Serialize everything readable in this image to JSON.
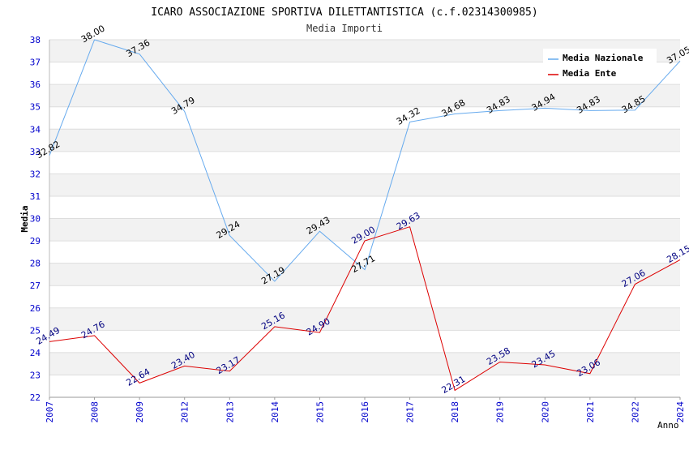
{
  "header": {
    "title": "ICARO ASSOCIAZIONE SPORTIVA DILETTANTISTICA (c.f.02314300985)",
    "subtitle": "Media Importi"
  },
  "chart_data": {
    "type": "line",
    "title": "ICARO ASSOCIAZIONE SPORTIVA DILETTANTISTICA (c.f.02314300985)",
    "subtitle": "Media Importi",
    "xlabel": "Anno",
    "ylabel": "Media",
    "ylim": [
      22,
      38
    ],
    "yticks": [
      22,
      23,
      24,
      25,
      26,
      27,
      28,
      29,
      30,
      31,
      32,
      33,
      34,
      35,
      36,
      37,
      38
    ],
    "categories": [
      "2007",
      "2008",
      "2009",
      "2012",
      "2013",
      "2014",
      "2015",
      "2016",
      "2017",
      "2018",
      "2019",
      "2020",
      "2021",
      "2022",
      "2024"
    ],
    "grid": true,
    "legend_position": "top-right",
    "series": [
      {
        "name": "Media Nazionale",
        "color": "#66aaee",
        "values": [
          32.82,
          38.0,
          37.36,
          34.79,
          29.24,
          27.19,
          29.43,
          27.71,
          34.32,
          34.68,
          34.83,
          34.94,
          34.83,
          34.85,
          37.05
        ],
        "labels": [
          "32.82",
          "38.00",
          "37.36",
          "34.79",
          "29.24",
          "27.19",
          "29.43",
          "27.71",
          "34.32",
          "34.68",
          "34.83",
          "34.94",
          "34.83",
          "34.85",
          "37.05"
        ]
      },
      {
        "name": "Media Ente",
        "color": "#dd0000",
        "values": [
          24.49,
          24.76,
          22.64,
          23.4,
          23.17,
          25.16,
          24.9,
          29.0,
          29.63,
          22.31,
          23.58,
          23.45,
          23.06,
          27.06,
          28.15
        ],
        "labels": [
          "24.49",
          "24.76",
          "22.64",
          "23.40",
          "23.17",
          "25.16",
          "24.90",
          "29.00",
          "29.63",
          "22.31",
          "23.58",
          "23.45",
          "23.06",
          "27.06",
          "28.15"
        ]
      }
    ]
  }
}
